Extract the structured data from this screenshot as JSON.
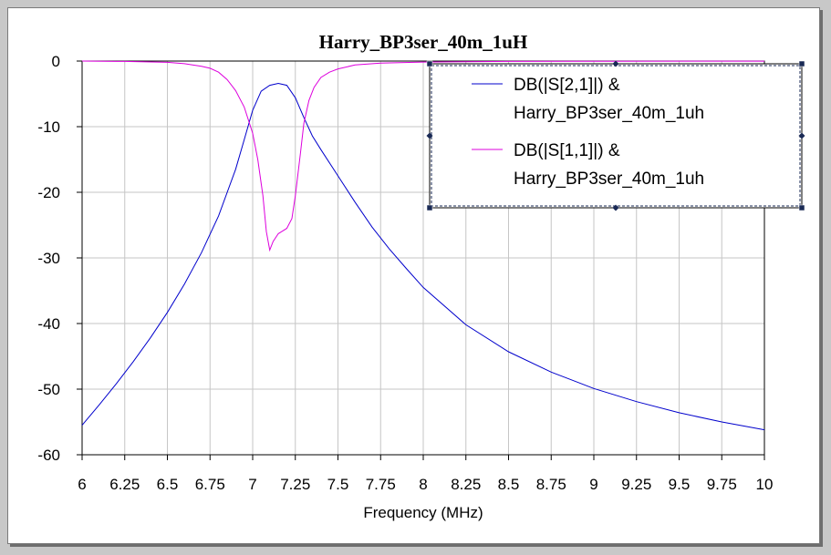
{
  "chart_data": {
    "type": "line",
    "title": "Harry_BP3ser_40m_1uH",
    "xlabel": "Frequency (MHz)",
    "ylabel": "",
    "xlim": [
      6,
      10
    ],
    "ylim": [
      -60,
      0
    ],
    "grid": true,
    "legend_position": "top-right",
    "x_ticks": [
      "6",
      "6.25",
      "6.5",
      "6.75",
      "7",
      "7.25",
      "7.5",
      "7.75",
      "8",
      "8.25",
      "8.5",
      "8.75",
      "9",
      "9.25",
      "9.5",
      "9.75",
      "10"
    ],
    "y_ticks": [
      "0",
      "-10",
      "-20",
      "-30",
      "-40",
      "-50",
      "-60"
    ],
    "series": [
      {
        "name": "DB(|S[2,1]|) & Harry_BP3ser_40m_1uh",
        "legend_lines": [
          "DB(|S[2,1]|) &",
          "Harry_BP3ser_40m_1uh"
        ],
        "color": "#0000cc",
        "x": [
          6.0,
          6.1,
          6.2,
          6.3,
          6.4,
          6.5,
          6.6,
          6.7,
          6.8,
          6.9,
          6.95,
          7.0,
          7.05,
          7.1,
          7.15,
          7.2,
          7.25,
          7.3,
          7.35,
          7.4,
          7.5,
          7.6,
          7.7,
          7.8,
          7.9,
          8.0,
          8.25,
          8.5,
          8.75,
          9.0,
          9.25,
          9.5,
          9.75,
          10.0
        ],
        "y": [
          -55.5,
          -52.4,
          -49.2,
          -45.8,
          -42.2,
          -38.3,
          -34.0,
          -29.2,
          -23.6,
          -16.5,
          -12.0,
          -7.5,
          -4.6,
          -3.7,
          -3.4,
          -3.7,
          -5.6,
          -8.6,
          -11.4,
          -13.5,
          -17.5,
          -21.5,
          -25.3,
          -28.6,
          -31.6,
          -34.5,
          -40.2,
          -44.3,
          -47.4,
          -49.9,
          -51.9,
          -53.6,
          -55.0,
          -56.2
        ]
      },
      {
        "name": "DB(|S[1,1]|) & Harry_BP3ser_40m_1uh",
        "legend_lines": [
          "DB(|S[1,1]|) &",
          "Harry_BP3ser_40m_1uh"
        ],
        "color": "#dd00dd",
        "x": [
          6.0,
          6.25,
          6.5,
          6.6,
          6.7,
          6.75,
          6.8,
          6.85,
          6.9,
          6.95,
          7.0,
          7.03,
          7.06,
          7.08,
          7.1,
          7.12,
          7.15,
          7.2,
          7.23,
          7.25,
          7.28,
          7.3,
          7.33,
          7.36,
          7.4,
          7.45,
          7.5,
          7.6,
          7.75,
          8.0,
          8.5,
          9.0,
          10.0
        ],
        "y": [
          0.0,
          -0.05,
          -0.2,
          -0.4,
          -0.8,
          -1.1,
          -1.7,
          -2.8,
          -4.5,
          -7.0,
          -11.0,
          -15.0,
          -20.5,
          -26.0,
          -28.8,
          -27.5,
          -26.3,
          -25.5,
          -24.0,
          -20.5,
          -14.0,
          -9.5,
          -6.0,
          -4.0,
          -2.5,
          -1.7,
          -1.2,
          -0.6,
          -0.3,
          -0.15,
          -0.05,
          -0.03,
          -0.01
        ]
      }
    ]
  }
}
